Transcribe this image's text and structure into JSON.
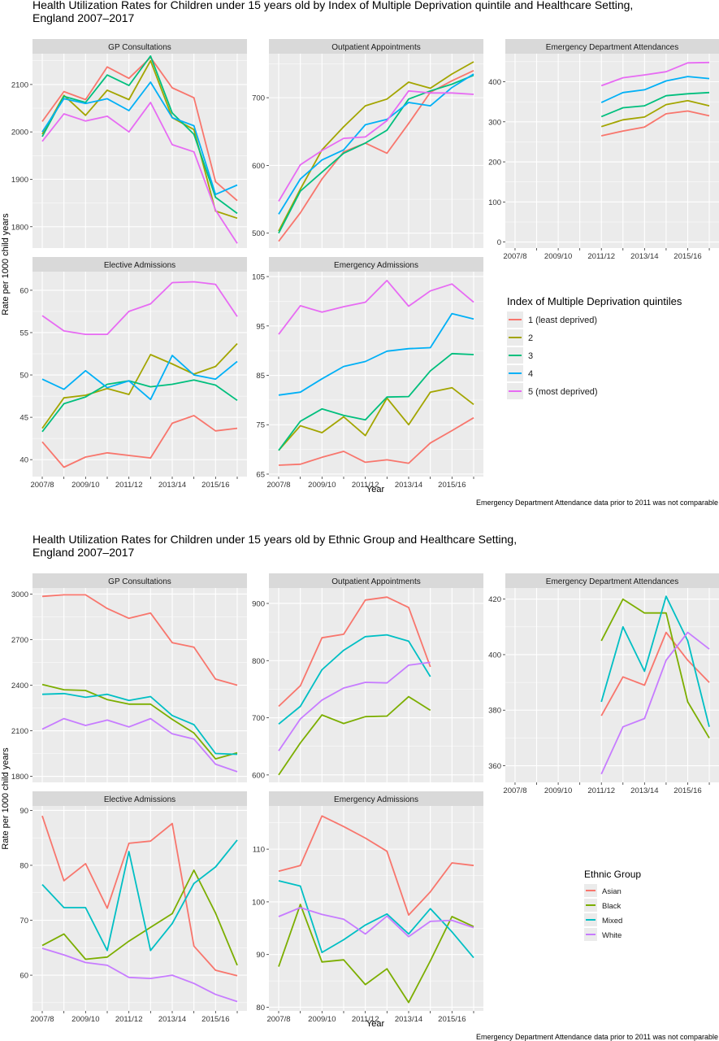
{
  "figures": [
    {
      "title": "Health Utilization Rates for Children under 15 years old by Index of Multiple Deprivation quintile and Healthcare Setting,",
      "title_line2": "England 2007–2017",
      "ylabel": "Rate per 1000 child years",
      "xlabel": "Year",
      "footnote": "Emergency Department Attendance data prior to 2011 was not comparable",
      "legend_title": "Index of Multiple Deprivation quintiles",
      "x_tick_labels": [
        "2007/8",
        "2009/10",
        "2011/12",
        "2013/14",
        "2015/16"
      ]
    },
    {
      "title": "Health Utilization Rates for Children under 15 years old by Ethnic Group and Healthcare Setting,",
      "title_line2": "England 2007–2017",
      "ylabel": "Rate per 1000 child years",
      "xlabel": "Year",
      "footnote": "Emergency Department Attendance data prior to 2011 was not comparable",
      "legend_title": "Ethnic Group",
      "x_tick_labels": [
        "2007/8",
        "2009/10",
        "2011/12",
        "2013/14",
        "2015/16"
      ]
    }
  ],
  "colors": {
    "panel_bg": "#EBEBEB",
    "strip_bg": "#D9D9D9",
    "grid": "#FFFFFF",
    "q1": "#F8766D",
    "q2": "#A3A500",
    "q3": "#00BF7D",
    "q4": "#00B0F6",
    "q5": "#E76BF3",
    "asian": "#F8766D",
    "black": "#7CAE00",
    "mixed": "#00BFC4",
    "white": "#C77CFF"
  },
  "chart_data": [
    {
      "type": "line",
      "figure": 0,
      "title": "GP Consultations",
      "x": [
        2007,
        2008,
        2009,
        2010,
        2011,
        2012,
        2013,
        2014,
        2015,
        2016
      ],
      "ylim": [
        1755,
        2165
      ],
      "yticks": [
        1800,
        1900,
        2000,
        2100
      ],
      "series": [
        {
          "name": "1 (least deprived)",
          "color": "#F8766D",
          "values": [
            2022,
            2085,
            2068,
            2137,
            2113,
            2157,
            2093,
            2072,
            1895,
            1855
          ]
        },
        {
          "name": "2",
          "color": "#A3A500",
          "values": [
            1995,
            2077,
            2035,
            2088,
            2068,
            2150,
            2030,
            2005,
            1833,
            1818
          ]
        },
        {
          "name": "3",
          "color": "#00BF7D",
          "values": [
            1990,
            2075,
            2062,
            2120,
            2098,
            2160,
            2040,
            1995,
            1862,
            1828
          ]
        },
        {
          "name": "4",
          "color": "#00B0F6",
          "values": [
            2000,
            2070,
            2060,
            2070,
            2045,
            2105,
            2030,
            2013,
            1868,
            1888
          ]
        },
        {
          "name": "5 (most deprived)",
          "color": "#E76BF3",
          "values": [
            1980,
            2038,
            2023,
            2033,
            2000,
            2062,
            1973,
            1958,
            1835,
            1765
          ]
        }
      ]
    },
    {
      "type": "line",
      "figure": 0,
      "title": "Outpatient Appointments",
      "x": [
        2007,
        2008,
        2009,
        2010,
        2011,
        2012,
        2013,
        2014,
        2015,
        2016
      ],
      "ylim": [
        478,
        765
      ],
      "yticks": [
        500,
        600,
        700
      ],
      "series": [
        {
          "name": "1 (least deprived)",
          "color": "#F8766D",
          "values": [
            488,
            530,
            580,
            620,
            633,
            618,
            662,
            708,
            725,
            740
          ]
        },
        {
          "name": "2",
          "color": "#A3A500",
          "values": [
            503,
            565,
            623,
            657,
            688,
            698,
            723,
            714,
            735,
            753
          ]
        },
        {
          "name": "3",
          "color": "#00BF7D",
          "values": [
            500,
            562,
            590,
            618,
            633,
            652,
            698,
            710,
            720,
            733
          ]
        },
        {
          "name": "4",
          "color": "#00B0F6",
          "values": [
            528,
            580,
            608,
            623,
            660,
            668,
            693,
            688,
            715,
            735
          ]
        },
        {
          "name": "5 (most deprived)",
          "color": "#E76BF3",
          "values": [
            547,
            601,
            622,
            640,
            642,
            666,
            710,
            707,
            707,
            705
          ]
        }
      ]
    },
    {
      "type": "line",
      "figure": 0,
      "title": "Emergency Department Attendances",
      "x": [
        2007,
        2008,
        2009,
        2010,
        2011,
        2012,
        2013,
        2014,
        2015,
        2016
      ],
      "ylim": [
        -15,
        470
      ],
      "yticks": [
        0,
        100,
        200,
        300,
        400
      ],
      "series": [
        {
          "name": "1 (least deprived)",
          "color": "#F8766D",
          "values": [
            null,
            null,
            null,
            null,
            265,
            277,
            287,
            320,
            327,
            315
          ]
        },
        {
          "name": "2",
          "color": "#A3A500",
          "values": [
            null,
            null,
            null,
            null,
            288,
            305,
            312,
            343,
            353,
            340
          ]
        },
        {
          "name": "3",
          "color": "#00BF7D",
          "values": [
            null,
            null,
            null,
            null,
            313,
            335,
            340,
            365,
            370,
            373
          ]
        },
        {
          "name": "4",
          "color": "#00B0F6",
          "values": [
            null,
            null,
            null,
            null,
            348,
            373,
            380,
            402,
            413,
            408
          ]
        },
        {
          "name": "5 (most deprived)",
          "color": "#E76BF3",
          "values": [
            null,
            null,
            null,
            null,
            390,
            410,
            417,
            425,
            447,
            448
          ]
        }
      ]
    },
    {
      "type": "line",
      "figure": 0,
      "title": "Elective Admissions",
      "x": [
        2007,
        2008,
        2009,
        2010,
        2011,
        2012,
        2013,
        2014,
        2015,
        2016
      ],
      "ylim": [
        38,
        62.2
      ],
      "yticks": [
        40,
        45,
        50,
        55,
        60
      ],
      "series": [
        {
          "name": "1 (least deprived)",
          "color": "#F8766D",
          "values": [
            42.1,
            39.1,
            40.3,
            40.8,
            40.5,
            40.2,
            44.3,
            45.2,
            43.4,
            43.7
          ]
        },
        {
          "name": "2",
          "color": "#A3A500",
          "values": [
            43.7,
            47.3,
            47.6,
            48.4,
            47.7,
            52.4,
            51.3,
            50.1,
            51.0,
            53.7
          ]
        },
        {
          "name": "3",
          "color": "#00BF7D",
          "values": [
            43.3,
            46.6,
            47.4,
            48.9,
            49.3,
            48.6,
            48.9,
            49.4,
            48.8,
            47.0
          ]
        },
        {
          "name": "4",
          "color": "#00B0F6",
          "values": [
            49.5,
            48.3,
            50.5,
            48.5,
            49.3,
            47.1,
            52.3,
            50.0,
            49.5,
            51.6
          ]
        },
        {
          "name": "5 (most deprived)",
          "color": "#E76BF3",
          "values": [
            57.0,
            55.2,
            54.8,
            54.8,
            57.5,
            58.4,
            60.9,
            61.0,
            60.7,
            56.9
          ]
        }
      ]
    },
    {
      "type": "line",
      "figure": 0,
      "title": "Emergency  Admissions",
      "x": [
        2007,
        2008,
        2009,
        2010,
        2011,
        2012,
        2013,
        2014,
        2015,
        2016
      ],
      "ylim": [
        64.5,
        106
      ],
      "yticks": [
        65,
        75,
        85,
        95,
        105
      ],
      "series": [
        {
          "name": "1 (least deprived)",
          "color": "#F8766D",
          "values": [
            66.8,
            67.0,
            68.4,
            69.6,
            67.4,
            67.9,
            67.2,
            71.3,
            73.8,
            76.4
          ]
        },
        {
          "name": "2",
          "color": "#A3A500",
          "values": [
            69.8,
            74.8,
            73.4,
            76.6,
            72.8,
            80.4,
            75.0,
            81.6,
            82.5,
            79.1
          ]
        },
        {
          "name": "3",
          "color": "#00BF7D",
          "values": [
            69.8,
            75.7,
            78.2,
            76.9,
            76.0,
            80.6,
            80.7,
            85.9,
            89.4,
            89.2
          ]
        },
        {
          "name": "4",
          "color": "#00B0F6",
          "values": [
            81.0,
            81.6,
            84.3,
            86.8,
            87.8,
            89.9,
            90.4,
            90.6,
            97.5,
            96.4
          ]
        },
        {
          "name": "5 (most deprived)",
          "color": "#E76BF3",
          "values": [
            93.3,
            99.1,
            97.8,
            98.9,
            99.8,
            104.2,
            99.0,
            102.1,
            103.5,
            99.8
          ]
        }
      ]
    },
    {
      "type": "line",
      "figure": 1,
      "title": "GP Consultations",
      "x": [
        2007,
        2008,
        2009,
        2010,
        2011,
        2012,
        2013,
        2014,
        2015,
        2016
      ],
      "ylim": [
        1760,
        3040
      ],
      "yticks": [
        1800,
        2100,
        2400,
        2700,
        3000
      ],
      "series": [
        {
          "name": "Asian",
          "color": "#F8766D",
          "values": [
            2985,
            2995,
            2995,
            2905,
            2840,
            2875,
            2680,
            2650,
            2440,
            2400
          ]
        },
        {
          "name": "Black",
          "color": "#7CAE00",
          "values": [
            2405,
            2370,
            2365,
            2305,
            2275,
            2275,
            2175,
            2085,
            1915,
            1955
          ]
        },
        {
          "name": "Mixed",
          "color": "#00BFC4",
          "values": [
            2340,
            2345,
            2320,
            2340,
            2300,
            2325,
            2200,
            2140,
            1950,
            1945
          ]
        },
        {
          "name": "White",
          "color": "#C77CFF",
          "values": [
            2110,
            2180,
            2135,
            2170,
            2125,
            2180,
            2080,
            2045,
            1880,
            1830
          ]
        }
      ]
    },
    {
      "type": "line",
      "figure": 1,
      "title": "Outpatient Appointments",
      "x": [
        2007,
        2008,
        2009,
        2010,
        2011,
        2012,
        2013,
        2014,
        2015
      ],
      "ylim": [
        587,
        927
      ],
      "yticks": [
        600,
        700,
        800,
        900
      ],
      "series": [
        {
          "name": "Asian",
          "color": "#F8766D",
          "values": [
            720,
            756,
            840,
            846,
            906,
            911,
            893,
            789,
            null
          ]
        },
        {
          "name": "Black",
          "color": "#7CAE00",
          "values": [
            600,
            656,
            705,
            690,
            702,
            703,
            737,
            713,
            null
          ]
        },
        {
          "name": "Mixed",
          "color": "#00BFC4",
          "values": [
            689,
            720,
            784,
            818,
            842,
            845,
            834,
            772,
            null
          ]
        },
        {
          "name": "White",
          "color": "#C77CFF",
          "values": [
            642,
            698,
            731,
            752,
            762,
            761,
            792,
            797,
            null
          ]
        }
      ]
    },
    {
      "type": "line",
      "figure": 1,
      "title": "Emergency Department Attendances",
      "x": [
        2007,
        2008,
        2009,
        2010,
        2011,
        2012,
        2013,
        2014,
        2015,
        2016
      ],
      "ylim": [
        354,
        424
      ],
      "yticks": [
        360,
        380,
        400,
        420
      ],
      "series": [
        {
          "name": "Asian",
          "color": "#F8766D",
          "values": [
            null,
            null,
            null,
            null,
            378,
            392,
            389,
            408,
            398,
            390
          ]
        },
        {
          "name": "Black",
          "color": "#7CAE00",
          "values": [
            null,
            null,
            null,
            null,
            405,
            420,
            415,
            415,
            383,
            370
          ]
        },
        {
          "name": "Mixed",
          "color": "#00BFC4",
          "values": [
            null,
            null,
            null,
            null,
            383,
            410,
            394,
            421,
            405,
            374
          ]
        },
        {
          "name": "White",
          "color": "#C77CFF",
          "values": [
            null,
            null,
            null,
            null,
            357,
            374,
            377,
            398,
            408,
            402
          ]
        }
      ]
    },
    {
      "type": "line",
      "figure": 1,
      "title": "Elective Admissions",
      "x": [
        2007,
        2008,
        2009,
        2010,
        2011,
        2012,
        2013,
        2014,
        2015,
        2016
      ],
      "ylim": [
        53.5,
        90.8
      ],
      "yticks": [
        60,
        70,
        80,
        90
      ],
      "series": [
        {
          "name": "Asian",
          "color": "#F8766D",
          "values": [
            89.0,
            77.2,
            80.3,
            72.2,
            84.0,
            84.4,
            87.6,
            65.3,
            60.9,
            59.9
          ]
        },
        {
          "name": "Black",
          "color": "#7CAE00",
          "values": [
            65.4,
            67.5,
            62.9,
            63.3,
            66.2,
            68.7,
            71.2,
            79.1,
            71.3,
            61.8
          ]
        },
        {
          "name": "Mixed",
          "color": "#00BFC4",
          "values": [
            76.5,
            72.3,
            72.3,
            64.5,
            82.5,
            64.5,
            69.4,
            76.7,
            79.7,
            84.6
          ]
        },
        {
          "name": "White",
          "color": "#C77CFF",
          "values": [
            64.9,
            63.7,
            62.3,
            61.8,
            59.6,
            59.4,
            60.0,
            58.5,
            56.5,
            55.2
          ]
        }
      ]
    },
    {
      "type": "line",
      "figure": 1,
      "title": "Emergency Admissions",
      "x": [
        2007,
        2008,
        2009,
        2010,
        2011,
        2012,
        2013,
        2014,
        2015,
        2016
      ],
      "ylim": [
        79.3,
        118.2
      ],
      "yticks": [
        80,
        90,
        100,
        110
      ],
      "series": [
        {
          "name": "Asian",
          "color": "#F8766D",
          "values": [
            105.8,
            106.9,
            116.3,
            114.3,
            112.1,
            109.6,
            97.5,
            101.9,
            107.4,
            106.9
          ]
        },
        {
          "name": "Black",
          "color": "#7CAE00",
          "values": [
            87.7,
            99.5,
            88.6,
            89.0,
            84.3,
            87.3,
            80.9,
            88.8,
            97.2,
            95.3
          ]
        },
        {
          "name": "Mixed",
          "color": "#00BFC4",
          "values": [
            104.0,
            103.0,
            90.4,
            92.8,
            95.6,
            97.7,
            93.9,
            98.7,
            94.3,
            89.4
          ]
        },
        {
          "name": "White",
          "color": "#C77CFF",
          "values": [
            97.2,
            98.9,
            97.6,
            96.7,
            93.9,
            97.3,
            93.4,
            96.3,
            96.5,
            95.1
          ]
        }
      ]
    }
  ]
}
